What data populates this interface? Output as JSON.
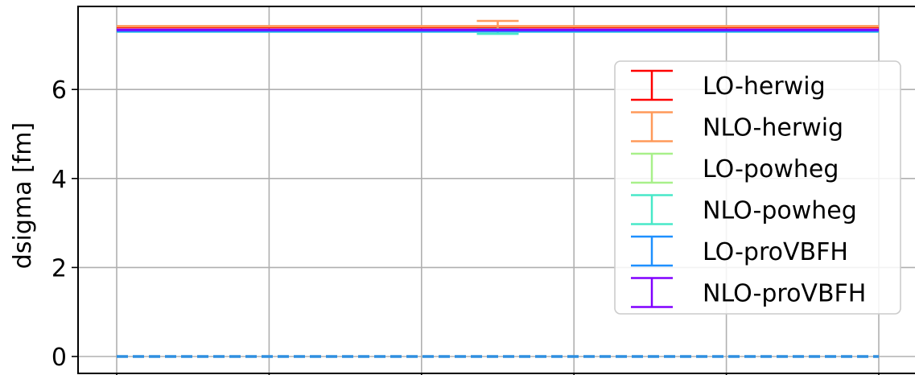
{
  "chart_data": {
    "type": "line",
    "title": "",
    "xlabel": "",
    "ylabel": "dsigma [fm]",
    "ylim": [
      -0.4,
      7.9
    ],
    "xlim": [
      -0.25,
      5.25
    ],
    "grid": true,
    "legend_position": "right",
    "y_ticks": [
      0,
      2,
      4,
      6
    ],
    "y_tick_labels": [
      "0",
      "2",
      "4",
      "6"
    ],
    "x_ticks": [
      0,
      1,
      2,
      3,
      4,
      5
    ],
    "baseline": {
      "value": 0,
      "style": "dashed",
      "color": "#2f8fe0"
    },
    "series": [
      {
        "name": "LO-herwig",
        "color": "#ff0000",
        "y": 7.4,
        "yerr": 0.0,
        "x_err_at": 2.5
      },
      {
        "name": "NLO-herwig",
        "color": "#ff9a5a",
        "y": 7.42,
        "yerr": 0.12,
        "x_err_at": 2.5
      },
      {
        "name": "LO-powheg",
        "color": "#a8f08a",
        "y": 7.33,
        "yerr": 0.0,
        "x_err_at": 2.5
      },
      {
        "name": "NLO-powheg",
        "color": "#48e8c8",
        "y": 7.3,
        "yerr": 0.05,
        "x_err_at": 2.5
      },
      {
        "name": "LO-proVBFH",
        "color": "#1e90ff",
        "y": 7.31,
        "yerr": 0.0,
        "x_err_at": 2.5
      },
      {
        "name": "NLO-proVBFH",
        "color": "#8000ff",
        "y": 7.34,
        "yerr": 0.0,
        "x_err_at": 2.5
      }
    ]
  }
}
